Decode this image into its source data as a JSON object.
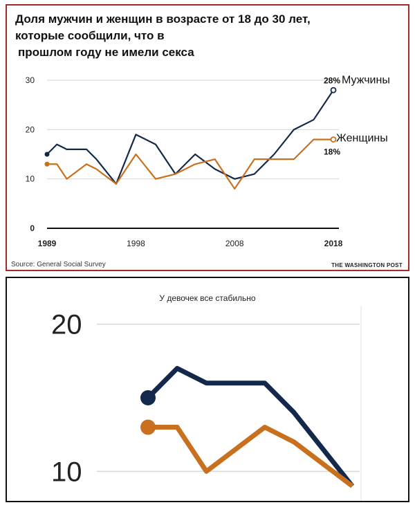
{
  "top_chart": {
    "title_lines": [
      "Доля мужчин и женщин в возрасте от 18 до 30 лет,",
      "которые сообщили, что в",
      "прошлом году не имели секса"
    ],
    "source": "Source: General Social Survey",
    "brand": "THE WASHINGTON POST",
    "end_label_men_value": "28%",
    "end_label_women_value": "18%"
  },
  "zoom_chart": {
    "title": "У девочек все стабильно"
  },
  "chart_data": [
    {
      "type": "line",
      "title": "Доля мужчин и женщин в возрасте от 18 до 30 лет, которые сообщили, что в прошлом году не имели секса",
      "xlabel": "",
      "ylabel": "",
      "xlim": [
        1989,
        2018
      ],
      "ylim": [
        0,
        30
      ],
      "yticks": [
        0,
        10,
        20,
        30
      ],
      "xticks": [
        1989,
        1998,
        2008,
        2018
      ],
      "grid": true,
      "legend": "direct-labels-right",
      "x": [
        1989,
        1990,
        1991,
        1993,
        1994,
        1996,
        1998,
        2000,
        2002,
        2004,
        2006,
        2008,
        2010,
        2012,
        2014,
        2016,
        2018
      ],
      "series": [
        {
          "name": "Мужчины",
          "color": "#13294b",
          "values": [
            15,
            17,
            16,
            16,
            14,
            9,
            19,
            17,
            11,
            15,
            12,
            10,
            11,
            15,
            20,
            22,
            28
          ]
        },
        {
          "name": "Женщины",
          "color": "#c8701e",
          "values": [
            13,
            13,
            10,
            13,
            12,
            9,
            15,
            10,
            11,
            13,
            14,
            8,
            14,
            14,
            14,
            18,
            18
          ]
        }
      ]
    },
    {
      "type": "line",
      "title": "У девочек все стабильно",
      "xlim": [
        1989,
        1996.3
      ],
      "ylim": [
        9.5,
        20.5
      ],
      "yticks": [
        10,
        20
      ],
      "grid": true,
      "x": [
        1989,
        1990,
        1991,
        1993,
        1994,
        1996
      ],
      "series": [
        {
          "name": "Мужчины",
          "color": "#13294b",
          "values": [
            15,
            17,
            16,
            16,
            14,
            9
          ]
        },
        {
          "name": "Женщины",
          "color": "#c8701e",
          "values": [
            13,
            13,
            10,
            13,
            12,
            9
          ]
        }
      ]
    }
  ]
}
